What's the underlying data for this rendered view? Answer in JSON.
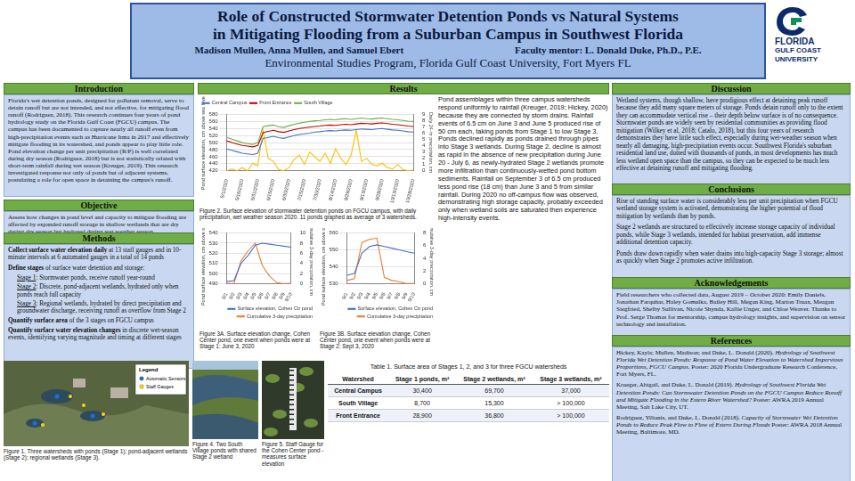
{
  "header": {
    "title_lines": [
      "Role of Constructed Stormwater Detention Ponds vs Natural Systems",
      "in Mitigating Flooding from a Suburban Campus in Southwest Florida"
    ],
    "authors": "Madison Mullen, Anna Mullen, and Samuel Ebert",
    "mentor": "Faculty mentor: L. Donald Duke, Ph.D., P.E.",
    "affiliation": "Environmental Studies Program, Florida Gulf Coast University, Fort Myers FL",
    "logo": [
      "FLORIDA",
      "GULF COAST",
      "UNIVERSITY"
    ]
  },
  "sections": {
    "introduction": {
      "heading": "Introduction",
      "paragraphs": [
        "Florida's wet detention ponds, designed for pollutant removal, serve to detain runoff but are not intended, and not effective, for mitigating flood runoff (Rodriguez, 2018). This research continues four years of pond hydrology study on the Florida Gulf Coast (FGCU) campus. The campus has been documented to capture nearly all runoff even from high-precipitation events such as Hurricane Irma in 2017 and effectively mitigate flooding in its watershed, and ponds appear to play little role. Pond elevation change per unit precipitation (R/P) is well correlated during dry season (Rodriguez, 2018) but is not statistically related with short-term rainfall during wet season (Kreuger, 2019). This research investigated response not only of ponds but of adjacent systems, postulating a role for open space in detaining the campus's runoff."
      ]
    },
    "objective": {
      "heading": "Objective",
      "paragraphs": [
        "Assess how changes in pond level and capacity to mitigate flooding are affected by expanded runoff storage in shallow wetlands that are dry during dry season but hydrated during wet weather season."
      ]
    },
    "methods": {
      "heading": "Methods",
      "items": [
        {
          "bold": "Collect surface water elevation daily",
          "text": " at 13 staff gauges and in 10-minute intervals at 6 automated gauges in a total of 14 ponds"
        },
        {
          "bold": "Define stages",
          "text": " of surface water detention and storage:",
          "stages": [
            {
              "label": "Stage 1",
              "text": ": Stormwater ponds, receive runoff year-round"
            },
            {
              "label": "Stage 2",
              "text": ": Discrete, pond-adjacent wetlands, hydrated only when ponds reach full capacity"
            },
            {
              "label": "Stage 3",
              "text": ": Regional wetlands, hydrated by direct precipitation and groundwater discharge, receiving runoff as overflow from Stage 2"
            }
          ]
        },
        {
          "bold": "Quantify surface area",
          "text": " of the 3 stages on FGCU campus"
        },
        {
          "bold": "Quantify surface water elevation changes",
          "text": " in discrete wet-season events, identifying varying magnitude and timing at different stages"
        }
      ]
    },
    "results": {
      "heading": "Results",
      "text": "Pond assemblages within three campus watersheds respond uniformly to rainfall (Kreuger, 2019; Hickey, 2020) because they are connected by storm drains. Rainfall events of 6.5 cm on June 3 and June 5 produced rise of 50 cm each, taking ponds from Stage 1 to low Stage 3. Ponds declined rapidly as ponds drained through pipes into Stage 3 wetlands. During Stage 2, decline is almost as rapid in the absence of new precipitation during June 20 - July 6, as newly-hydrated Stage 2 wetlands promote more infiltration than continuously-wetted pond bottom sediments. Rainfall on September 3 of 6.5 cm produced less pond rise (18 cm) than June 3 and 5 from similar rainfall. During 2020 no off-campus flow was observed, demonstrating high storage capacity, probably exceeded only when wetland soils are saturated then experience high-intensity events."
    },
    "discussion": {
      "heading": "Discussion",
      "paragraphs": [
        "Wetland systems, though shallow, have prodigious effect at detaining peak runoff because they add many square meters of storage. Ponds detain runoff only to the extent they can accommodate vertical rise – their depth below surface is of no consequence. Stormwater ponds are widely seen by residential communities as providing flood mitigation (Wilkey et al, 2018; Catalo, 2018), but this four years of research demonstrates they have little such effect, especially during wet-weather season when nearly all damaging, high-precipitation events occur. Southwest Florida's suburban residential land use, dotted with thousands of ponds, in most developments has much less wetland open space than the campus, so they can be expected to be much less effective at detaining runoff and mitigating flooding."
      ]
    },
    "conclusions": {
      "heading": "Conclusions",
      "paragraphs": [
        "Rise of standing surface water is considerably less per unit precipitation when FGCU wetland storage system is activated, demonstrating the higher potential of flood mitigation by wetlands than by ponds.",
        "Stage 2 wetlands are structured to effectively increase storage capacity of individual ponds, while Stage 3 wetlands, intended for habitat preservation, add immense additional detention capacity.",
        "Ponds draw down rapidly when water drains into high-capacity Stage 3 storage; almost as quickly when Stage 2 promotes active infiltration."
      ]
    },
    "acknowledgements": {
      "heading": "Acknowledgements",
      "paragraphs": [
        "Field researchers who collected data, August 2019 – October 2020: Emily Daniels, Jonathan Farquhar, Haley Gomulka, Bailey Hill, Megan King, Marion Truax, Meagan Siegfried, Shelby Sullivan, Nicole Shynda, Kallie Unger, and Chloe Weaver. Thanks to Prof. Serge Thomas for mentorship, campus hydrology insights, and supervision on sensor technology and installation."
      ]
    },
    "references": {
      "heading": "References",
      "items": [
        {
          "authors": "Hickey, Kayla; Mullen, Madison; and Duke, L. Donald (2020). ",
          "title": "Hydrology of Southwest Florida Wet Detention Ponds: Response of Pond Water Elevation to Watershed Impervious Proportions, FGCU Campus.",
          "venue": " Poster: 2020 Florida Undergraduate Research Conference, Fort Myers, FL."
        },
        {
          "authors": "Krueger, Abigail, and Duke, L. Donald (2019). ",
          "title": "Hydrology of Southwest Florida Wet Detention Ponds: Can Stormwater Detention Ponds on the FGCU Campus Reduce Runoff and Mitigate Flooding in the Estero River Watershed?",
          "venue": " Poster: AWRA 2019 Annual Meeting, Salt Lake City, UT."
        },
        {
          "authors": "Rodriguez, Yilianis, and Duke, L. Donald (2018). ",
          "title": "Capacity of Stormwater Wet Detention Ponds to Reduce Peak Flow to Flow of Estero During Floods",
          "venue": " Poster: AWRA 2018 Annual Meeting, Baltimore, MD."
        }
      ]
    }
  },
  "chart_data": [
    {
      "type": "line",
      "caption": "Figure 2. Surface elevation of stormwater detention ponds on FGCU campus, with daily precipitation, wet weather season 2020. 11 ponds graphed as average of 3 watersheds.",
      "y_label": "Pond surface elevation, cm above sea level",
      "y2_label": "Daily 24-hr precipitation, cm",
      "categories": [
        "5/1/2020",
        null,
        null,
        "5/16/2020",
        null,
        null,
        "5/31/2020",
        null,
        null,
        "6/15/2020",
        null,
        null,
        "6/30/2020",
        null,
        null,
        "7/15/2020",
        null,
        null,
        "7/30/2020",
        null,
        null,
        "8/14/2020",
        null,
        null,
        "8/29/2020",
        null,
        null,
        "9/13/2020",
        null,
        null,
        "9/28/2020",
        null,
        null,
        "10/13/2020",
        null,
        null,
        "10/28/2020"
      ],
      "series": [
        {
          "name": "Central Campus",
          "color": "#4472c4",
          "values": [
            482,
            478,
            474,
            470,
            468,
            466,
            470,
            512,
            515,
            518,
            514,
            512,
            516,
            520,
            523,
            525,
            527,
            530,
            531,
            533,
            534,
            533,
            535,
            536,
            535,
            537,
            539,
            538,
            537,
            539,
            540,
            538,
            536,
            535,
            533,
            531,
            530
          ]
        },
        {
          "name": "Front Entrance",
          "color": "#c00000",
          "values": [
            505,
            500,
            496,
            492,
            490,
            488,
            492,
            528,
            532,
            535,
            531,
            529,
            533,
            537,
            540,
            542,
            544,
            546,
            547,
            549,
            550,
            549,
            551,
            552,
            551,
            553,
            555,
            554,
            553,
            555,
            556,
            554,
            552,
            551,
            549,
            547,
            546
          ]
        },
        {
          "name": "South Village",
          "color": "#70ad47",
          "values": [
            515,
            510,
            505,
            500,
            497,
            495,
            500,
            545,
            548,
            550,
            545,
            543,
            548,
            552,
            555,
            558,
            560,
            562,
            563,
            565,
            566,
            565,
            567,
            568,
            566,
            568,
            570,
            568,
            567,
            569,
            570,
            568,
            566,
            565,
            563,
            561,
            560
          ]
        },
        {
          "color": "#ffc000",
          "axis": "y2",
          "values": [
            0,
            0.3,
            0,
            0.5,
            0,
            1.2,
            0.8,
            6.5,
            2.0,
            1.5,
            0.2,
            0,
            0.5,
            1.8,
            2.5,
            1.0,
            3.0,
            2.2,
            1.5,
            2.8,
            1.2,
            3.5,
            2.0,
            1.0,
            2.5,
            6.5,
            1.5,
            2.0,
            1.0,
            0.8,
            1.2,
            0.5,
            0.3,
            1.0,
            0.2,
            0,
            0.1
          ]
        }
      ],
      "ylim": [
        420,
        580
      ],
      "yticks": [
        420,
        440,
        460,
        480,
        500,
        520,
        540,
        560,
        580
      ],
      "y2lim": [
        0,
        9
      ],
      "y2ticks": [
        0,
        1,
        2,
        3,
        4,
        5,
        6,
        7,
        8,
        9
      ],
      "grid": true,
      "legend": "top-left"
    },
    {
      "type": "line",
      "caption": "Figure 3A. Surface elevation change, Cohen Center pond, one event when ponds were at Stage 1: June 3, 2020",
      "y_label": "Pond surface elevation, cm above sea level",
      "y2_label": "Cumulative 3-day precipitation, cm",
      "categories": [
        "6/1",
        "6/2",
        "6/3",
        "6/4",
        "6/5",
        "6/6",
        "6/7",
        "6/8",
        "6/9",
        "6/10"
      ],
      "series": [
        {
          "name": "Surface elevation, Cohen Ctr pond",
          "color": "#4472c4",
          "values": [
            492,
            493,
            510,
            518,
            528,
            530,
            529,
            528,
            527,
            526
          ]
        },
        {
          "name": "Cumulative 3-day precipitation",
          "color": "#ed7d31",
          "axis": "y2",
          "values": [
            0,
            0,
            4.5,
            6.5,
            8.0,
            3.5,
            1.5,
            0.2,
            0,
            0
          ]
        }
      ],
      "ylim": [
        490,
        540
      ],
      "yticks": [
        490,
        500,
        510,
        520,
        530,
        540
      ],
      "y2lim": [
        0,
        10
      ],
      "y2ticks": [
        0,
        2,
        4,
        6,
        8,
        10
      ],
      "grid": true,
      "legend": "bottom-right"
    },
    {
      "type": "line",
      "caption": "Figure 3B. Surface elevation change, Cohen Center pond, one event when ponds were at Stage 2: Sept 3, 2020",
      "y_label": "Pond surface elevation, cm above sea level",
      "y2_label": "Cumulative 3-day precipitation, cm",
      "categories": [
        "9/1",
        "9/2",
        "9/3",
        "9/4",
        "9/5",
        "9/6",
        "9/7",
        "9/8",
        "9/9",
        "9/10"
      ],
      "series": [
        {
          "name": "Surface elevation, Cohen Ctr pond",
          "color": "#4472c4",
          "values": [
            535,
            536,
            548,
            552,
            553,
            552,
            551,
            550,
            549,
            548
          ]
        },
        {
          "name": "Cumulative 3-day precipitation",
          "color": "#ed7d31",
          "axis": "y2",
          "values": [
            0.5,
            0.8,
            6.5,
            7.0,
            7.2,
            1.0,
            0.5,
            0.3,
            0,
            0
          ]
        }
      ],
      "ylim": [
        530,
        560
      ],
      "yticks": [
        530,
        540,
        550,
        560
      ],
      "y2lim": [
        0,
        8
      ],
      "y2ticks": [
        0,
        2,
        4,
        6,
        8
      ],
      "grid": true,
      "legend": "bottom-right"
    }
  ],
  "table": {
    "caption": "Table 1. Surface area of Stages 1, 2, and 3 for three FGCU watersheds",
    "columns": [
      "Watershed",
      "Stage 1 ponds, m²",
      "Stage 2 wetlands, m²",
      "Stage 3 wetlands, m²"
    ],
    "rows": [
      [
        "Central Campus",
        "30,400",
        "69,700",
        "37,000"
      ],
      [
        "South Village",
        "8,700",
        "15,300",
        "> 100,000"
      ],
      [
        "Front Entrance",
        "28,900",
        "36,800",
        "> 100,000"
      ]
    ]
  },
  "figures": {
    "figure1": {
      "caption": "Figure 1. Three watersheds with ponds (Stage 1); pond-adjacent wetlands (Stage 2); regional wetlands (Stage 3).",
      "legend": {
        "title": "Legend",
        "items": [
          "Automatic Sensors",
          "Staff Gauges"
        ]
      }
    },
    "figure4": {
      "caption": "Figure 4. Two South Village ponds with shared Stage 2 wetland"
    },
    "figure5": {
      "caption": "Figure 5. Staff Gauge for the Cohen Center pond - measures surface elevation"
    }
  }
}
